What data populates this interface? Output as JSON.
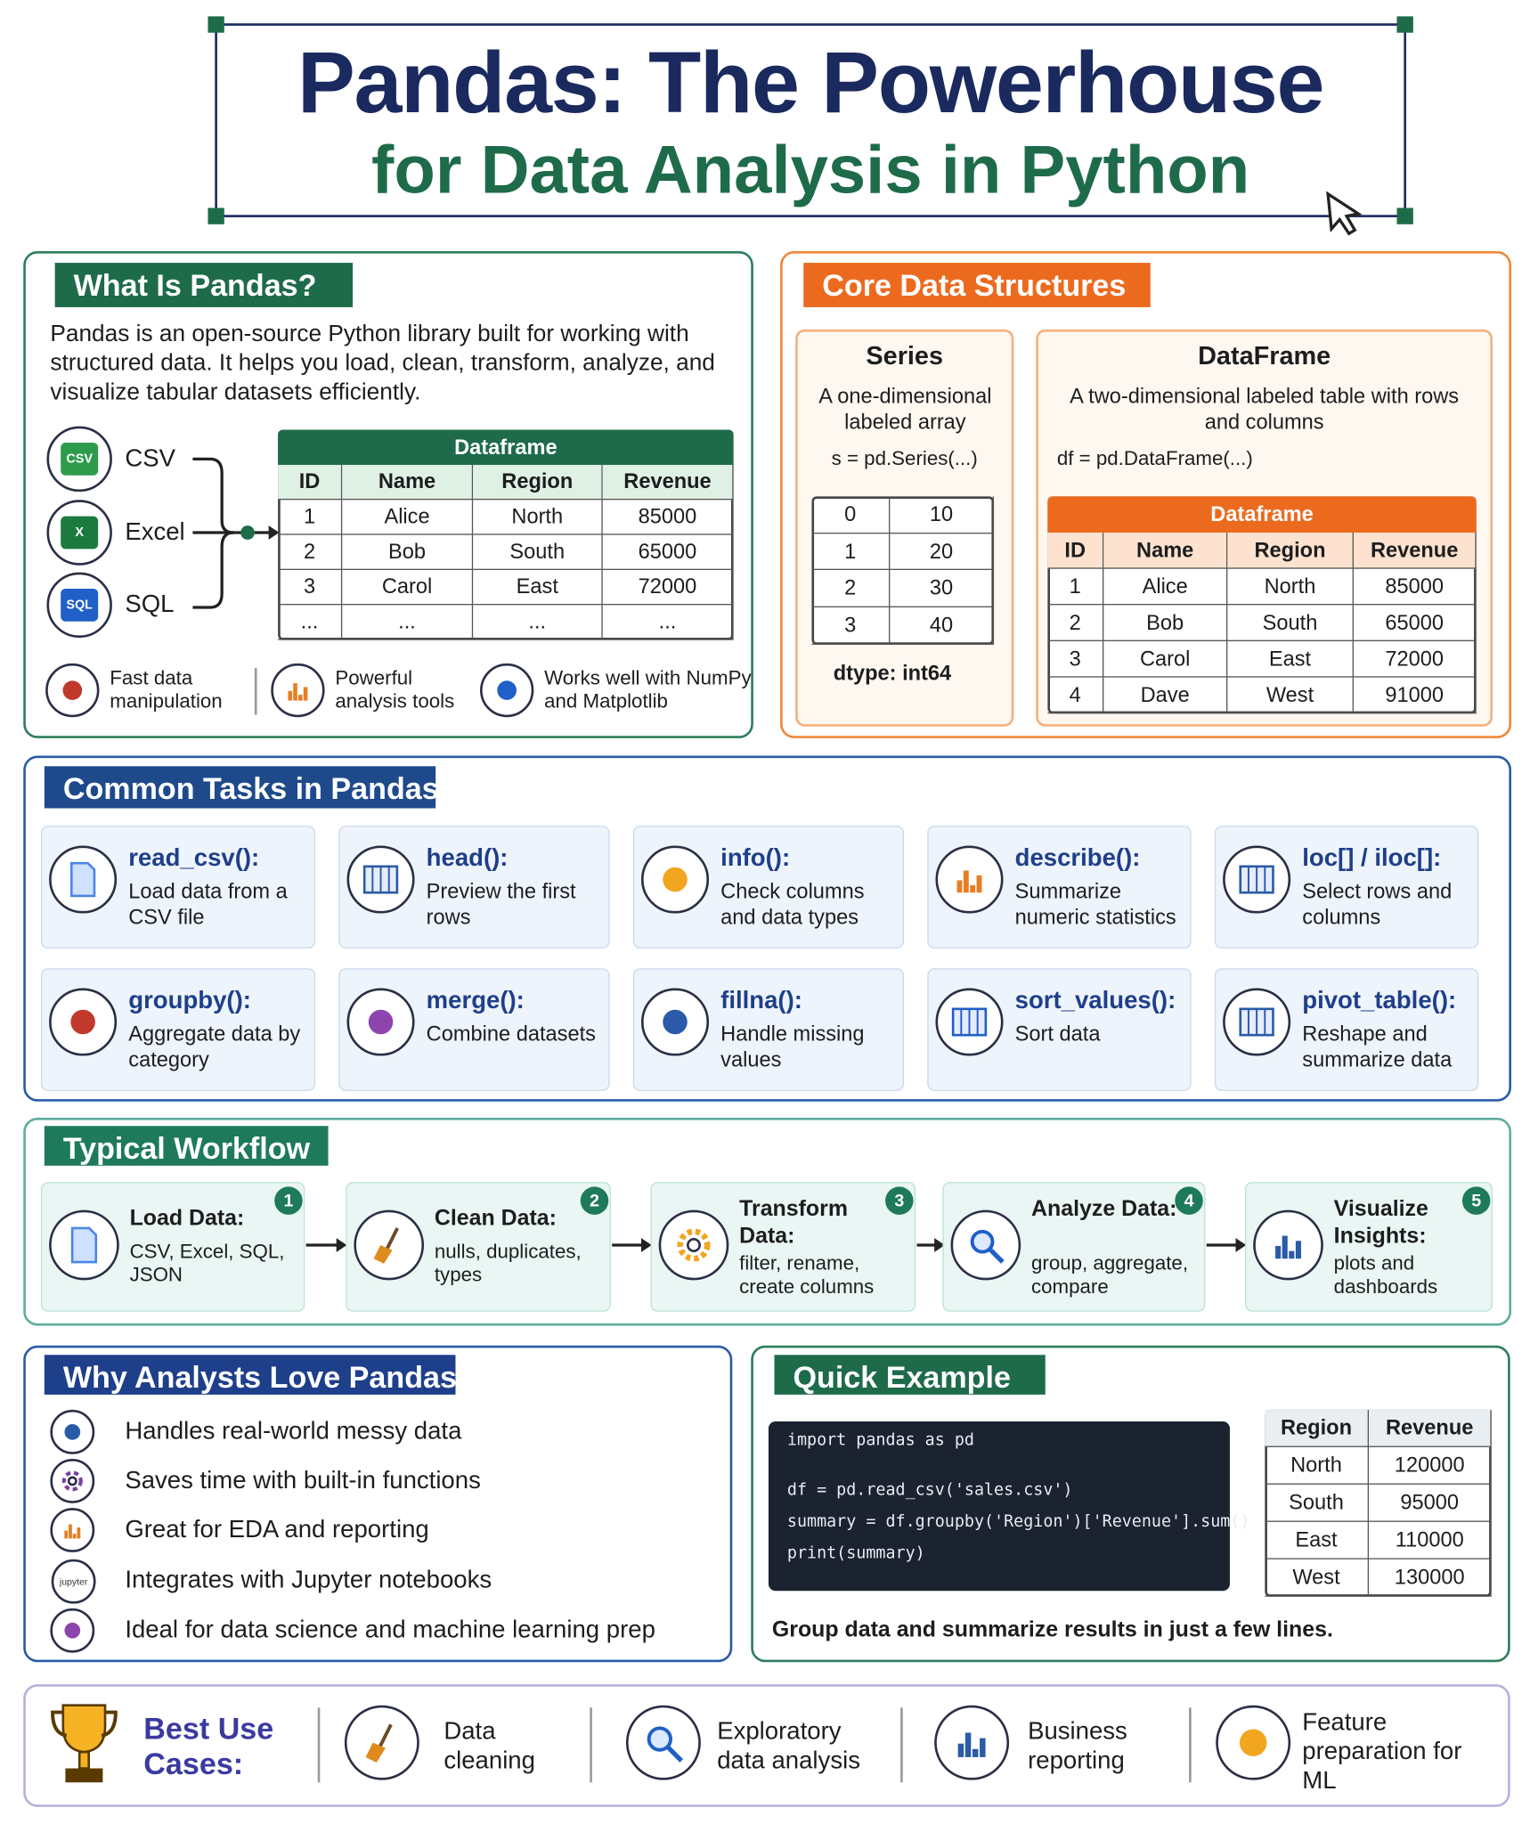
{
  "header": {
    "title": "Pandas: The Powerhouse",
    "subtitle": "for Data Analysis in Python"
  },
  "what_is": {
    "heading": "What Is Pandas?",
    "description": "Pandas is an open-source Python library built for working with structured data. It helps you load, clean, transform, analyze, and visualize tabular datasets efficiently.",
    "sources": [
      {
        "badge": "CSV",
        "label": "CSV"
      },
      {
        "badge": "X",
        "label": "Excel"
      },
      {
        "badge": "SQL",
        "label": "SQL"
      }
    ],
    "table": {
      "caption": "Dataframe",
      "columns": [
        "ID",
        "Name",
        "Region",
        "Revenue"
      ],
      "rows": [
        [
          1,
          "Alice",
          "North",
          85000
        ],
        [
          2,
          "Bob",
          "South",
          65000
        ],
        [
          3,
          "Carol",
          "East",
          72000
        ],
        [
          "...",
          "...",
          "...",
          "..."
        ]
      ]
    },
    "features": [
      "Fast data manipulation",
      "Powerful analysis tools",
      "Works well with NumPy and Matplotlib"
    ]
  },
  "core": {
    "heading": "Core Data Structures",
    "series": {
      "title": "Series",
      "description": "A one-dimensional labeled array",
      "code": "s = pd.Series(...)",
      "index": [
        0,
        1,
        2,
        3
      ],
      "values": [
        10,
        20,
        30,
        40
      ],
      "dtype": "dtype: int64"
    },
    "dataframe": {
      "title": "DataFrame",
      "description": "A two-dimensional labeled table with rows and columns",
      "code": "df = pd.DataFrame(...)",
      "table": {
        "caption": "Dataframe",
        "columns": [
          "ID",
          "Name",
          "Region",
          "Revenue"
        ],
        "rows": [
          [
            1,
            "Alice",
            "North",
            85000
          ],
          [
            2,
            "Bob",
            "South",
            65000
          ],
          [
            3,
            "Carol",
            "East",
            72000
          ],
          [
            4,
            "Dave",
            "West",
            91000
          ]
        ]
      }
    }
  },
  "tasks": {
    "heading": "Common Tasks in Pandas",
    "items": [
      {
        "name": "read_csv():",
        "description": "Load data from a CSV file"
      },
      {
        "name": "head():",
        "description": "Preview the first rows"
      },
      {
        "name": "info():",
        "description": "Check columns and data types"
      },
      {
        "name": "describe():",
        "description": "Summarize numeric statistics"
      },
      {
        "name": "loc[] / iloc[]:",
        "description": "Select rows and columns"
      },
      {
        "name": "groupby():",
        "description": "Aggregate data by category"
      },
      {
        "name": "merge():",
        "description": "Combine datasets"
      },
      {
        "name": "fillna():",
        "description": "Handle missing values"
      },
      {
        "name": "sort_values():",
        "description": "Sort data"
      },
      {
        "name": "pivot_table():",
        "description": "Reshape and summarize data"
      }
    ]
  },
  "workflow": {
    "heading": "Typical Workflow",
    "steps": [
      {
        "step": 1,
        "title": "Load Data:",
        "description": "CSV, Excel, SQL, JSON"
      },
      {
        "step": 2,
        "title": "Clean Data:",
        "description": "nulls, duplicates, types"
      },
      {
        "step": 3,
        "title": "Transform Data:",
        "description": "filter, rename, create columns"
      },
      {
        "step": 4,
        "title": "Analyze Data:",
        "description": "group, aggregate, compare"
      },
      {
        "step": 5,
        "title": "Visualize Insights:",
        "description": "plots and dashboards"
      }
    ]
  },
  "why": {
    "heading": "Why Analysts Love Pandas",
    "icon_badge": "jupyter",
    "reasons": [
      "Handles real-world messy data",
      "Saves time with built-in functions",
      "Great for EDA and reporting",
      "Integrates with Jupyter notebooks",
      "Ideal for data science and machine learning prep"
    ]
  },
  "example": {
    "heading": "Quick Example",
    "code": [
      "import pandas as pd",
      "df = pd.read_csv('sales.csv')",
      "summary = df.groupby('Region')['Revenue'].sum()",
      "print(summary)"
    ],
    "table": {
      "columns": [
        "Region",
        "Revenue"
      ],
      "rows": [
        [
          "North",
          120000
        ],
        [
          "South",
          95000
        ],
        [
          "East",
          110000
        ],
        [
          "West",
          130000
        ]
      ]
    },
    "caption": "Group data and summarize results in just a few lines."
  },
  "use_cases": {
    "heading": "Best Use Cases:",
    "items": [
      "Data cleaning",
      "Exploratory data analysis",
      "Business reporting",
      "Feature preparation for ML"
    ]
  }
}
